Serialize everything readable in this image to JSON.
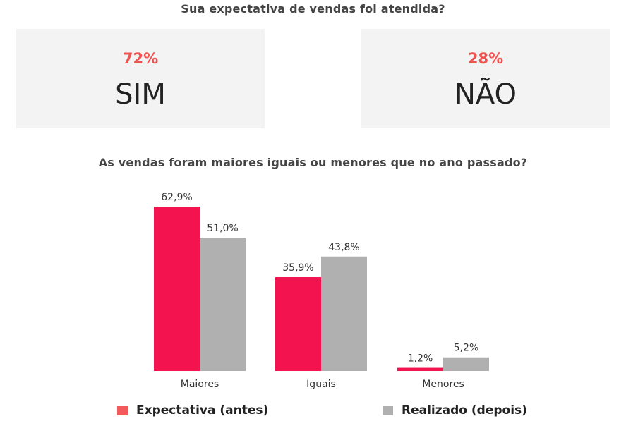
{
  "question1": {
    "title": "Sua expectativa de vendas foi atendida?",
    "cards": [
      {
        "percent": "72%",
        "label": "SIM"
      },
      {
        "percent": "28%",
        "label": "NÃO"
      }
    ]
  },
  "question2": {
    "title": "As vendas foram maiores iguais ou menores que no ano passado?"
  },
  "colors": {
    "accent_pct": "#f0524f",
    "expectativa": "#f2134f",
    "realizado": "#b0b0b0",
    "card_bg": "#f3f3f3",
    "legend_expectativa_swatch": "#f15b5b",
    "legend_realizado_swatch": "#b0b0b0"
  },
  "chart_data": {
    "type": "bar",
    "title": "As vendas foram maiores iguais ou menores que no ano passado?",
    "categories": [
      "Maiores",
      "Iguais",
      "Menores"
    ],
    "series": [
      {
        "name": "Expectativa (antes)",
        "values": [
          62.9,
          35.9,
          1.2
        ],
        "labels": [
          "62,9%",
          "35,9%",
          "1,2%"
        ]
      },
      {
        "name": "Realizado (depois)",
        "values": [
          51.0,
          43.8,
          5.2
        ],
        "labels": [
          "51,0%",
          "43,8%",
          "5,2%"
        ]
      }
    ],
    "ylim": [
      0,
      62.9
    ],
    "grid": false,
    "legend_position": "bottom"
  },
  "legend": {
    "expectativa": "Expectativa (antes)",
    "realizado": "Realizado (depois)"
  }
}
